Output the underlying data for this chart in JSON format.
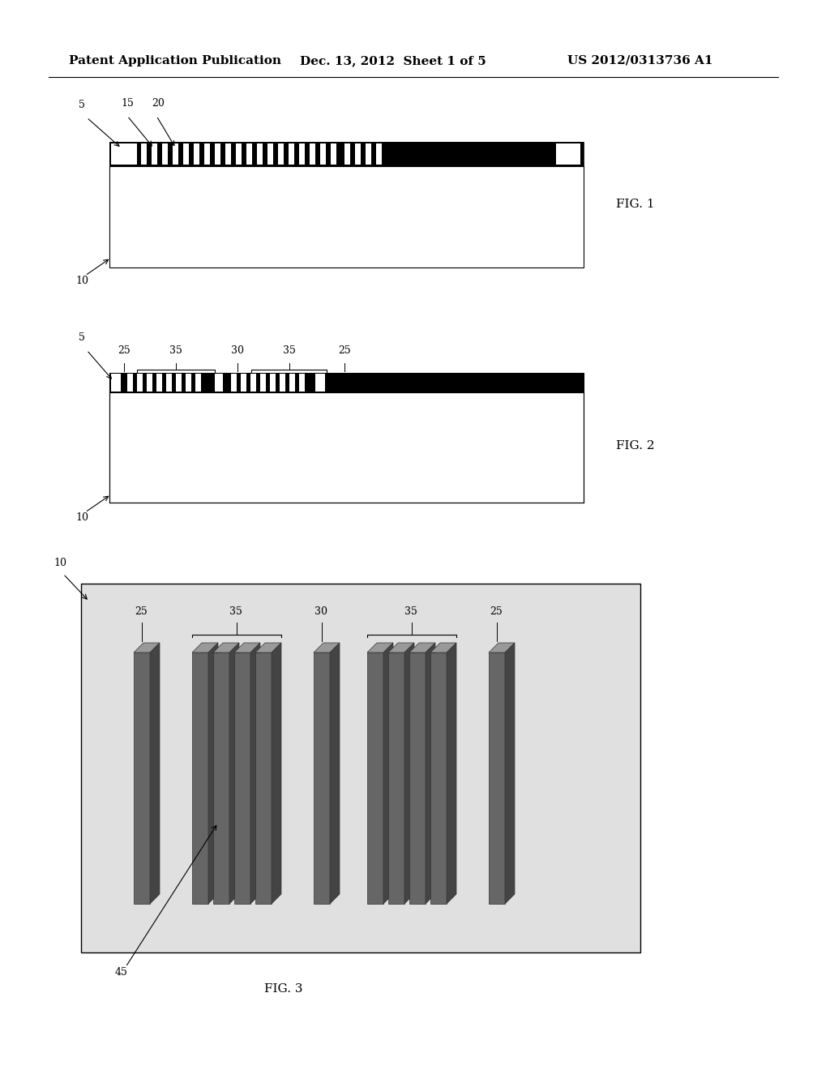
{
  "bg_color": "#ffffff",
  "header_text1": "Patent Application Publication",
  "header_text2": "Dec. 13, 2012  Sheet 1 of 5",
  "header_text3": "US 2012/0313736 A1",
  "fig1_label": "FIG. 1",
  "fig2_label": "FIG. 2",
  "fig3_label": "FIG. 3",
  "black": "#000000",
  "pillar_face_color": "#666666",
  "pillar_side_color": "#444444",
  "pillar_top_color": "#999999",
  "pillar_edge_color": "#333333",
  "bg3_color": "#e0e0e0"
}
